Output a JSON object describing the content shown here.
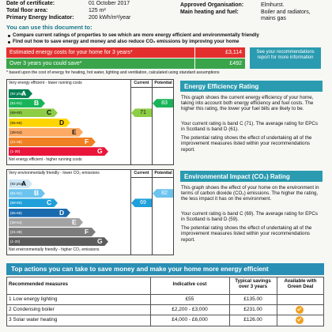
{
  "header": {
    "left_fields": [
      {
        "label": "Date of certificate:",
        "value": "01 October 2017"
      },
      {
        "label": "Total floor area:",
        "value": "125 m²"
      },
      {
        "label": "Primary Energy Indicator:",
        "value": "200 kWh/m²/year"
      }
    ],
    "right_fields": [
      {
        "label": "Approved Organisation:",
        "value": "Elmhurst."
      },
      {
        "label": "Main heating and fuel:",
        "value": "Boiler and radiators, mains gas"
      }
    ]
  },
  "intro": {
    "title": "You can use this document to:",
    "bullets": [
      "Compare current ratings of properties to see which are more energy efficient and environmentally friendly",
      "Find out how to save energy and money and also reduce CO₂ emissions by improving your home"
    ]
  },
  "costs": {
    "rows": [
      {
        "label": "Estimated energy costs for your home for 3 years*",
        "value": "£3,114"
      },
      {
        "label": "Over 3 years you could save*",
        "value": "£492"
      }
    ],
    "note": "See your recommendations report for more information",
    "footnote": "* based upon the cost of energy for heating, hot water, lighting and ventilation, calculated using standard assumptions"
  },
  "ratings": [
    {
      "top_label": "Very energy efficient - lower running costs",
      "bottom_label": "Not energy efficient - higher running costs",
      "current_header": "Current",
      "potential_header": "Potential",
      "bands": [
        {
          "range": "(92 plus)",
          "letter": "A"
        },
        {
          "range": "(81-91)",
          "letter": "B"
        },
        {
          "range": "(69-80)",
          "letter": "C"
        },
        {
          "range": "(55-68)",
          "letter": "D"
        },
        {
          "range": "(39-54)",
          "letter": "E"
        },
        {
          "range": "(21-38)",
          "letter": "F"
        },
        {
          "range": "(1-20)",
          "letter": "G"
        }
      ],
      "current": 71,
      "potential": 83,
      "title": "Energy Efficiency Rating",
      "paragraphs": [
        "This graph shows the current energy efficiency of your home, taking into account both energy efficiency and fuel costs. The higher this rating, the lower your fuel bills are likely to be.",
        "Your current rating is band C (71). The average rating for EPCs in Scotland is band D (61).",
        "The potential rating shows the effect of undertaking all of the improvement measures listed within your recommendations report."
      ]
    },
    {
      "top_label": "Very environmentally friendly - lower CO₂ emissions",
      "bottom_label": "Not environmentally friendly - higher CO₂ emissions",
      "current_header": "Current",
      "potential_header": "Potential",
      "bands": [
        {
          "range": "(92 plus)",
          "letter": "A"
        },
        {
          "range": "(81-91)",
          "letter": "B"
        },
        {
          "range": "(69-80)",
          "letter": "C"
        },
        {
          "range": "(55-68)",
          "letter": "D"
        },
        {
          "range": "(39-54)",
          "letter": "E"
        },
        {
          "range": "(21-38)",
          "letter": "F"
        },
        {
          "range": "(1-20)",
          "letter": "G"
        }
      ],
      "current": 69,
      "potential": 82,
      "title": "Environmental Impact (CO₂) Rating",
      "paragraphs": [
        "This graph shows the effect of your home on the environment in terms of carbon dioxide (CO₂) emissions. The higher the rating, the less impact it has on the environment.",
        "Your current rating is band C (69). The average rating for EPCs in Scotland is band D (59).",
        "The potential rating shows the effect of undertaking all of the improvement measures listed within your recommendations report."
      ]
    }
  ],
  "actions": {
    "title": "Top actions you can take to save money and make your home more energy efficient",
    "headers": [
      "Recommended measures",
      "Indicative cost",
      "Typical savings over 3 years",
      "Available with Green Deal"
    ],
    "rows": [
      [
        "1 Low energy lighting",
        "£55",
        "£135.00"
      ],
      [
        "2 Condensing boiler",
        "£2,200 - £3,000",
        "£231.00"
      ],
      [
        "3 Solar water heating",
        "£4,000 - £6,000",
        "£126.00"
      ]
    ]
  }
}
